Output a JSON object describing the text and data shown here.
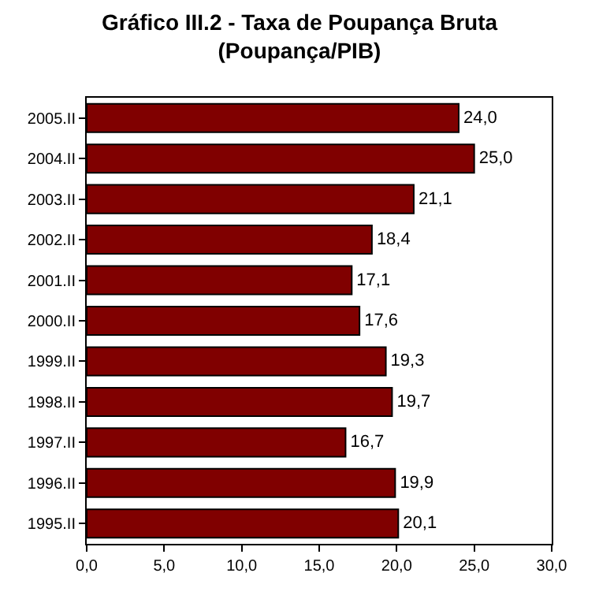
{
  "chart_data": {
    "type": "bar",
    "orientation": "horizontal",
    "title": "Gráfico III.2 - Taxa de Poupança Bruta\n(Poupança/PIB)",
    "categories": [
      "2005.II",
      "2004.II",
      "2003.II",
      "2002.II",
      "2001.II",
      "2000.II",
      "1999.II",
      "1998.II",
      "1997.II",
      "1996.II",
      "1995.II"
    ],
    "values": [
      24.0,
      25.0,
      21.1,
      18.4,
      17.1,
      17.6,
      19.3,
      19.7,
      16.7,
      19.9,
      20.1
    ],
    "value_labels": [
      "24,0",
      "25,0",
      "21,1",
      "18,4",
      "17,1",
      "17,6",
      "19,3",
      "19,7",
      "16,7",
      "19,9",
      "20,1"
    ],
    "color": "#800000",
    "xlim": [
      0,
      30
    ],
    "xticks": [
      {
        "value": 0,
        "label": "0,0"
      },
      {
        "value": 5,
        "label": "5,0"
      },
      {
        "value": 10,
        "label": "10,0"
      },
      {
        "value": 15,
        "label": "15,0"
      },
      {
        "value": 20,
        "label": "20,0"
      },
      {
        "value": 25,
        "label": "25,0"
      },
      {
        "value": 30,
        "label": "30,0"
      }
    ],
    "legend": false
  }
}
